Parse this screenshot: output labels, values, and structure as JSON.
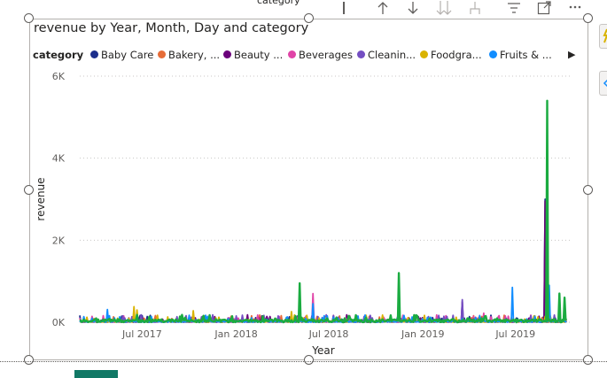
{
  "header": {
    "field_label": "category",
    "icons": [
      "info-icon",
      "drill-up-icon",
      "drill-down-icon",
      "expand-next-level-icon",
      "drill-through-icon",
      "filter-icon",
      "focus-mode-icon",
      "more-options-icon"
    ]
  },
  "legend": {
    "title": "category",
    "items": [
      {
        "label": "Baby Care",
        "color": "#1c2e8c"
      },
      {
        "label": "Bakery, ...",
        "color": "#e66c37"
      },
      {
        "label": "Beauty ...",
        "color": "#6b007b"
      },
      {
        "label": "Beverages",
        "color": "#e044a7"
      },
      {
        "label": "Cleanin...",
        "color": "#744ec2"
      },
      {
        "label": "Foodgra...",
        "color": "#d9b300"
      },
      {
        "label": "Fruits & ...",
        "color": "#118dff"
      }
    ]
  },
  "chart_data": {
    "type": "line",
    "title": "revenue by Year, Month, Day and category",
    "xlabel": "Year",
    "ylabel": "revenue",
    "ylim": [
      0,
      6000
    ],
    "y_ticks": [
      "0K",
      "2K",
      "4K",
      "6K"
    ],
    "x_ticks": [
      "Jul 2017",
      "Jan 2018",
      "Jul 2018",
      "Jan 2019",
      "Jul 2019"
    ],
    "x_range": [
      "2017-03-01",
      "2019-10-10"
    ],
    "grid": true,
    "legend_position": "top-left",
    "series": [
      {
        "name": "Baby Care",
        "color": "#1c2e8c",
        "points": [
          [
            "2018-07-20",
            120
          ],
          [
            "2019-08-28",
            3000
          ]
        ]
      },
      {
        "name": "Bakery, ...",
        "color": "#e66c37",
        "points": [
          [
            "2018-02-10",
            90
          ],
          [
            "2019-04-15",
            120
          ]
        ]
      },
      {
        "name": "Beauty ...",
        "color": "#6b007b",
        "points": [
          [
            "2018-08-05",
            180
          ],
          [
            "2019-03-20",
            500
          ],
          [
            "2019-08-28",
            2950
          ]
        ]
      },
      {
        "name": "Beverages",
        "color": "#e044a7",
        "points": [
          [
            "2018-06-01",
            700
          ],
          [
            "2019-05-01",
            220
          ]
        ]
      },
      {
        "name": "Cleanin...",
        "color": "#744ec2",
        "points": [
          [
            "2019-03-20",
            550
          ],
          [
            "2019-09-05",
            400
          ]
        ]
      },
      {
        "name": "Foodgra...",
        "color": "#d9b300",
        "points": [
          [
            "2017-06-15",
            380
          ],
          [
            "2017-06-22",
            300
          ],
          [
            "2017-10-10",
            280
          ],
          [
            "2018-04-20",
            260
          ]
        ]
      },
      {
        "name": "Fruits & ...",
        "color": "#118dff",
        "points": [
          [
            "2017-04-25",
            310
          ],
          [
            "2018-06-01",
            450
          ],
          [
            "2019-06-25",
            850
          ],
          [
            "2019-09-05",
            900
          ]
        ]
      },
      {
        "color": "#1aab40",
        "points": [
          [
            "2018-05-05",
            950
          ],
          [
            "2018-11-15",
            1200
          ],
          [
            "2019-09-01",
            5400
          ],
          [
            "2019-09-25",
            700
          ],
          [
            "2019-10-05",
            600
          ]
        ]
      }
    ]
  }
}
